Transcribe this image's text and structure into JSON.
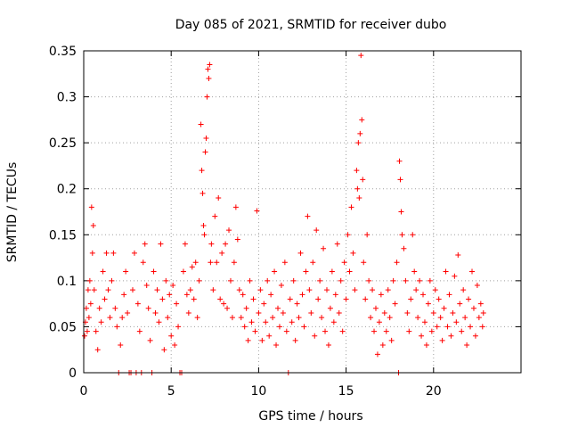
{
  "chart_data": {
    "type": "scatter",
    "title": "Day 085 of 2021, SRMTID for receiver dubo",
    "xlabel": "GPS time / hours",
    "ylabel": "SRMTID / TECUs",
    "xlim": [
      0,
      25.0
    ],
    "ylim": [
      0,
      0.35
    ],
    "xticks": [
      0,
      5,
      10,
      15,
      20
    ],
    "yticks": [
      0,
      0.05,
      0.1,
      0.15,
      0.2,
      0.25,
      0.3,
      0.35
    ],
    "xtick_labels": [
      "0",
      "5",
      "10",
      "15",
      "20"
    ],
    "ytick_labels": [
      "0",
      "0.05",
      "0.1",
      "0.15",
      "0.2",
      "0.25",
      "0.3",
      "0.35"
    ],
    "grid": true,
    "marker": "+",
    "marker_color": "#ff0000",
    "series": [
      {
        "name": "SRMTID",
        "points": [
          [
            0.05,
            0.04
          ],
          [
            0.1,
            0.055
          ],
          [
            0.15,
            0.07
          ],
          [
            0.2,
            0.045
          ],
          [
            0.25,
            0.09
          ],
          [
            0.3,
            0.06
          ],
          [
            0.35,
            0.1
          ],
          [
            0.4,
            0.075
          ],
          [
            0.45,
            0.18
          ],
          [
            0.5,
            0.13
          ],
          [
            0.55,
            0.16
          ],
          [
            0.6,
            0.09
          ],
          [
            0.7,
            0.045
          ],
          [
            0.8,
            0.025
          ],
          [
            0.9,
            0.07
          ],
          [
            1.0,
            0.055
          ],
          [
            1.1,
            0.11
          ],
          [
            1.2,
            0.08
          ],
          [
            1.3,
            0.13
          ],
          [
            1.4,
            0.09
          ],
          [
            1.5,
            0.06
          ],
          [
            1.6,
            0.1
          ],
          [
            1.7,
            0.13
          ],
          [
            1.8,
            0.07
          ],
          [
            1.9,
            0.05
          ],
          [
            2.0,
            0.0
          ],
          [
            2.1,
            0.03
          ],
          [
            2.2,
            0.06
          ],
          [
            2.3,
            0.085
          ],
          [
            2.4,
            0.11
          ],
          [
            2.5,
            0.065
          ],
          [
            2.6,
            0.0
          ],
          [
            2.7,
            0.0
          ],
          [
            2.8,
            0.09
          ],
          [
            2.9,
            0.13
          ],
          [
            3.0,
            0.0
          ],
          [
            3.1,
            0.075
          ],
          [
            3.2,
            0.045
          ],
          [
            3.3,
            0.0
          ],
          [
            3.4,
            0.12
          ],
          [
            3.5,
            0.14
          ],
          [
            3.6,
            0.095
          ],
          [
            3.7,
            0.07
          ],
          [
            3.8,
            0.035
          ],
          [
            3.9,
            0.0
          ],
          [
            4.0,
            0.11
          ],
          [
            4.1,
            0.065
          ],
          [
            4.2,
            0.09
          ],
          [
            4.3,
            0.055
          ],
          [
            4.4,
            0.14
          ],
          [
            4.5,
            0.08
          ],
          [
            4.6,
            0.025
          ],
          [
            4.7,
            0.1
          ],
          [
            4.8,
            0.06
          ],
          [
            4.9,
            0.085
          ],
          [
            5.0,
            0.04
          ],
          [
            5.1,
            0.095
          ],
          [
            5.2,
            0.03
          ],
          [
            5.3,
            0.075
          ],
          [
            5.4,
            0.05
          ],
          [
            5.5,
            0.0
          ],
          [
            5.6,
            0.0
          ],
          [
            5.7,
            0.11
          ],
          [
            5.8,
            0.14
          ],
          [
            5.9,
            0.085
          ],
          [
            6.0,
            0.065
          ],
          [
            6.1,
            0.09
          ],
          [
            6.2,
            0.115
          ],
          [
            6.3,
            0.08
          ],
          [
            6.4,
            0.12
          ],
          [
            6.5,
            0.06
          ],
          [
            6.6,
            0.1
          ],
          [
            6.7,
            0.27
          ],
          [
            6.75,
            0.22
          ],
          [
            6.8,
            0.195
          ],
          [
            6.85,
            0.16
          ],
          [
            6.9,
            0.15
          ],
          [
            6.95,
            0.24
          ],
          [
            7.0,
            0.255
          ],
          [
            7.05,
            0.3
          ],
          [
            7.1,
            0.33
          ],
          [
            7.15,
            0.32
          ],
          [
            7.2,
            0.335
          ],
          [
            7.25,
            0.12
          ],
          [
            7.3,
            0.14
          ],
          [
            7.4,
            0.09
          ],
          [
            7.5,
            0.17
          ],
          [
            7.6,
            0.12
          ],
          [
            7.7,
            0.19
          ],
          [
            7.8,
            0.08
          ],
          [
            7.9,
            0.13
          ],
          [
            8.0,
            0.075
          ],
          [
            8.1,
            0.14
          ],
          [
            8.2,
            0.07
          ],
          [
            8.3,
            0.155
          ],
          [
            8.4,
            0.1
          ],
          [
            8.5,
            0.06
          ],
          [
            8.6,
            0.12
          ],
          [
            8.7,
            0.18
          ],
          [
            8.8,
            0.145
          ],
          [
            8.9,
            0.09
          ],
          [
            9.0,
            0.06
          ],
          [
            9.1,
            0.085
          ],
          [
            9.2,
            0.05
          ],
          [
            9.3,
            0.07
          ],
          [
            9.4,
            0.035
          ],
          [
            9.5,
            0.1
          ],
          [
            9.6,
            0.055
          ],
          [
            9.7,
            0.08
          ],
          [
            9.8,
            0.045
          ],
          [
            9.9,
            0.176
          ],
          [
            10.0,
            0.065
          ],
          [
            10.1,
            0.09
          ],
          [
            10.2,
            0.035
          ],
          [
            10.3,
            0.075
          ],
          [
            10.4,
            0.055
          ],
          [
            10.5,
            0.1
          ],
          [
            10.6,
            0.04
          ],
          [
            10.7,
            0.085
          ],
          [
            10.8,
            0.06
          ],
          [
            10.9,
            0.11
          ],
          [
            11.0,
            0.03
          ],
          [
            11.1,
            0.07
          ],
          [
            11.2,
            0.05
          ],
          [
            11.3,
            0.095
          ],
          [
            11.4,
            0.065
          ],
          [
            11.5,
            0.12
          ],
          [
            11.6,
            0.045
          ],
          [
            11.7,
            0.0
          ],
          [
            11.8,
            0.08
          ],
          [
            11.9,
            0.055
          ],
          [
            12.0,
            0.1
          ],
          [
            12.1,
            0.035
          ],
          [
            12.2,
            0.075
          ],
          [
            12.3,
            0.06
          ],
          [
            12.4,
            0.13
          ],
          [
            12.5,
            0.085
          ],
          [
            12.6,
            0.05
          ],
          [
            12.7,
            0.11
          ],
          [
            12.8,
            0.17
          ],
          [
            12.9,
            0.09
          ],
          [
            13.0,
            0.065
          ],
          [
            13.1,
            0.12
          ],
          [
            13.2,
            0.04
          ],
          [
            13.3,
            0.155
          ],
          [
            13.4,
            0.08
          ],
          [
            13.5,
            0.1
          ],
          [
            13.6,
            0.06
          ],
          [
            13.7,
            0.135
          ],
          [
            13.8,
            0.045
          ],
          [
            13.9,
            0.09
          ],
          [
            14.0,
            0.03
          ],
          [
            14.1,
            0.07
          ],
          [
            14.2,
            0.11
          ],
          [
            14.3,
            0.055
          ],
          [
            14.4,
            0.085
          ],
          [
            14.5,
            0.14
          ],
          [
            14.6,
            0.065
          ],
          [
            14.7,
            0.1
          ],
          [
            14.8,
            0.045
          ],
          [
            14.9,
            0.12
          ],
          [
            15.0,
            0.08
          ],
          [
            15.1,
            0.15
          ],
          [
            15.2,
            0.11
          ],
          [
            15.3,
            0.18
          ],
          [
            15.4,
            0.13
          ],
          [
            15.5,
            0.09
          ],
          [
            15.6,
            0.22
          ],
          [
            15.65,
            0.2
          ],
          [
            15.7,
            0.25
          ],
          [
            15.75,
            0.19
          ],
          [
            15.8,
            0.26
          ],
          [
            15.85,
            0.345
          ],
          [
            15.9,
            0.275
          ],
          [
            15.95,
            0.21
          ],
          [
            16.0,
            0.12
          ],
          [
            16.1,
            0.08
          ],
          [
            16.2,
            0.15
          ],
          [
            16.3,
            0.1
          ],
          [
            16.4,
            0.06
          ],
          [
            16.5,
            0.09
          ],
          [
            16.6,
            0.045
          ],
          [
            16.7,
            0.07
          ],
          [
            16.8,
            0.02
          ],
          [
            16.9,
            0.055
          ],
          [
            17.0,
            0.085
          ],
          [
            17.1,
            0.03
          ],
          [
            17.2,
            0.065
          ],
          [
            17.3,
            0.045
          ],
          [
            17.4,
            0.09
          ],
          [
            17.5,
            0.06
          ],
          [
            17.6,
            0.035
          ],
          [
            17.7,
            0.1
          ],
          [
            17.8,
            0.075
          ],
          [
            17.9,
            0.12
          ],
          [
            18.0,
            0.0
          ],
          [
            18.05,
            0.23
          ],
          [
            18.1,
            0.21
          ],
          [
            18.15,
            0.175
          ],
          [
            18.2,
            0.15
          ],
          [
            18.3,
            0.135
          ],
          [
            18.4,
            0.1
          ],
          [
            18.5,
            0.065
          ],
          [
            18.6,
            0.045
          ],
          [
            18.7,
            0.08
          ],
          [
            18.8,
            0.15
          ],
          [
            18.9,
            0.11
          ],
          [
            19.0,
            0.09
          ],
          [
            19.1,
            0.06
          ],
          [
            19.2,
            0.1
          ],
          [
            19.3,
            0.04
          ],
          [
            19.4,
            0.085
          ],
          [
            19.5,
            0.055
          ],
          [
            19.6,
            0.03
          ],
          [
            19.7,
            0.075
          ],
          [
            19.8,
            0.1
          ],
          [
            19.9,
            0.045
          ],
          [
            20.0,
            0.065
          ],
          [
            20.1,
            0.09
          ],
          [
            20.2,
            0.05
          ],
          [
            20.3,
            0.08
          ],
          [
            20.4,
            0.06
          ],
          [
            20.5,
            0.035
          ],
          [
            20.6,
            0.07
          ],
          [
            20.7,
            0.11
          ],
          [
            20.8,
            0.05
          ],
          [
            20.9,
            0.085
          ],
          [
            21.0,
            0.04
          ],
          [
            21.1,
            0.065
          ],
          [
            21.2,
            0.105
          ],
          [
            21.3,
            0.055
          ],
          [
            21.4,
            0.128
          ],
          [
            21.5,
            0.075
          ],
          [
            21.6,
            0.045
          ],
          [
            21.7,
            0.09
          ],
          [
            21.8,
            0.06
          ],
          [
            21.9,
            0.03
          ],
          [
            22.0,
            0.08
          ],
          [
            22.1,
            0.05
          ],
          [
            22.2,
            0.11
          ],
          [
            22.3,
            0.07
          ],
          [
            22.4,
            0.04
          ],
          [
            22.5,
            0.095
          ],
          [
            22.6,
            0.06
          ],
          [
            22.7,
            0.075
          ],
          [
            22.8,
            0.05
          ],
          [
            22.85,
            0.065
          ]
        ]
      }
    ]
  }
}
